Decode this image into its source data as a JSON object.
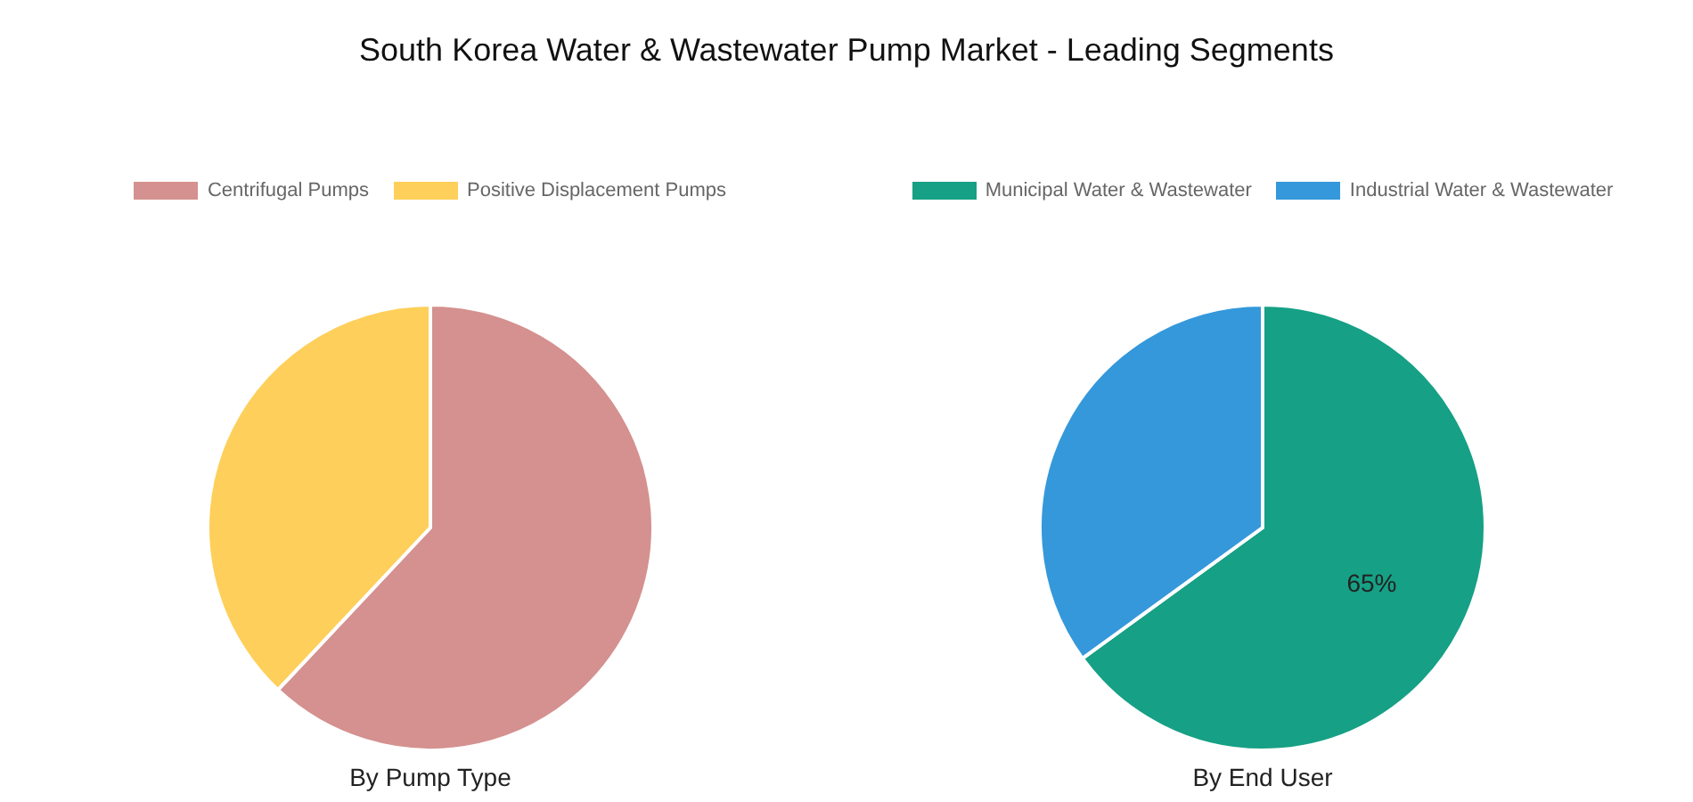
{
  "chart_data": [
    {
      "type": "pie",
      "title": "South Korea Water & Wastewater Pump Market - Leading Segments",
      "xlabel": "By Pump Type",
      "categories": [
        "Centrifugal Pumps",
        "Positive Displacement Pumps"
      ],
      "values": [
        62,
        38
      ],
      "colors": [
        "#d4918f",
        "#fecf5a"
      ],
      "legend": "top"
    },
    {
      "type": "pie",
      "xlabel": "By End User",
      "categories": [
        "Municipal Water & Wastewater",
        "Industrial Water & Wastewater"
      ],
      "values": [
        65,
        35
      ],
      "colors": [
        "#16a085",
        "#3498db"
      ],
      "value_labels": [
        "65%",
        null
      ],
      "legend": "top"
    }
  ]
}
